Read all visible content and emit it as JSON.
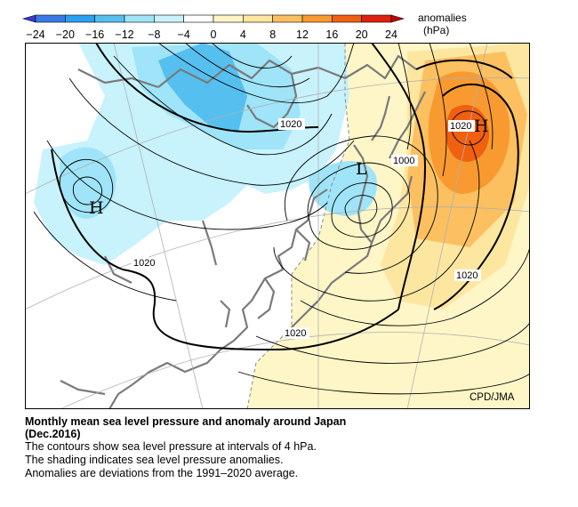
{
  "legend": {
    "title_line1": "anomalies",
    "title_line2": "(hPa)",
    "ticks": [
      "−24",
      "−20",
      "−16",
      "−12",
      "−8",
      "−4",
      "0",
      "4",
      "8",
      "12",
      "16",
      "20",
      "24"
    ],
    "colors": [
      "#3a3ad0",
      "#3a7ae8",
      "#2aa0f0",
      "#55c0f0",
      "#9fe4f8",
      "#c8f2fc",
      "#ffffff",
      "#fff6c8",
      "#fde6a0",
      "#fcc060",
      "#f89a30",
      "#f06010",
      "#e02010",
      "#c00000"
    ]
  },
  "map": {
    "credit": "CPD/JMA",
    "contour_labels": [
      {
        "id": "a",
        "text": "1020"
      },
      {
        "id": "b",
        "text": "1020"
      },
      {
        "id": "c",
        "text": "1000"
      },
      {
        "id": "d",
        "text": "1020"
      },
      {
        "id": "e",
        "text": "1020"
      },
      {
        "id": "f",
        "text": "1020"
      }
    ],
    "pressure_centers": [
      {
        "id": "h-west",
        "text": "H"
      },
      {
        "id": "h-east",
        "text": "H"
      },
      {
        "id": "l-north",
        "text": "L"
      }
    ]
  },
  "caption": {
    "title": "Monthly mean sea level pressure and anomaly around Japan",
    "period": "(Dec.2016)",
    "lines": [
      "The contours show sea level pressure at intervals of 4 hPa.",
      "The shading indicates sea level pressure anomalies.",
      "Anomalies are deviations from the 1991–2020 average."
    ]
  }
}
